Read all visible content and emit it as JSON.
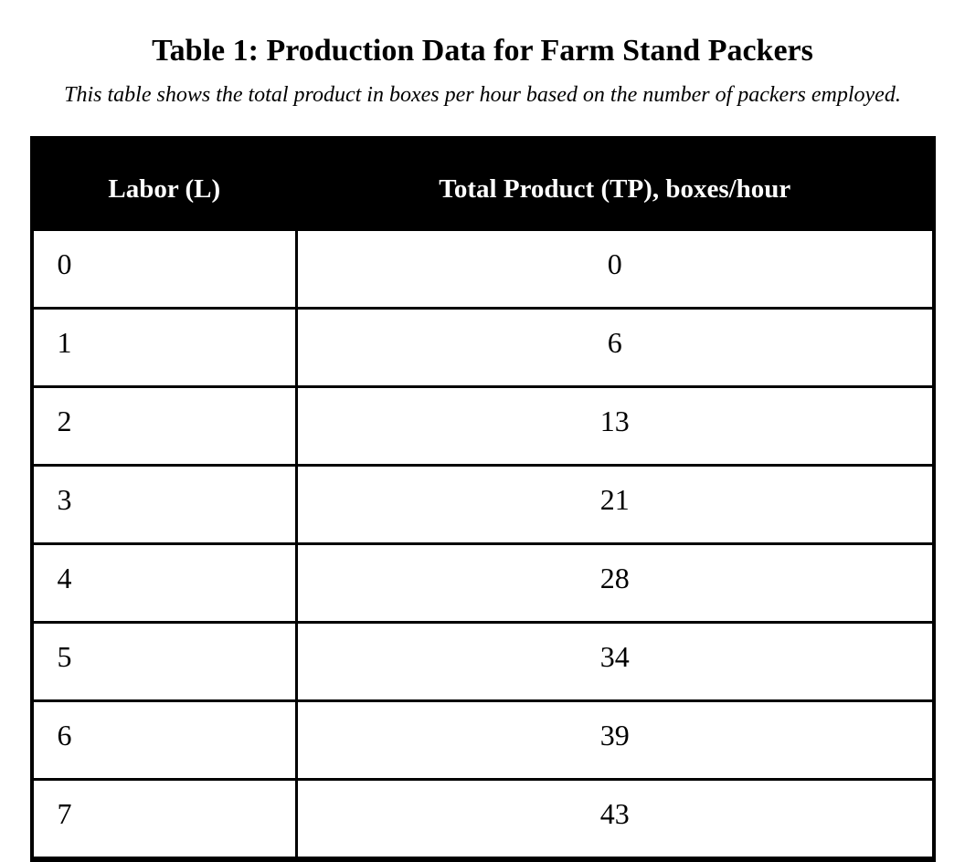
{
  "document": {
    "title": "Table 1: Production Data for Farm Stand Packers",
    "caption": "This table shows the total product in boxes per hour based on the number of packers employed."
  },
  "table": {
    "headers": [
      "Labor (L)",
      "Total Product (TP), boxes/hour"
    ],
    "rows": [
      {
        "labor": "0",
        "tp": "0"
      },
      {
        "labor": "1",
        "tp": "6"
      },
      {
        "labor": "2",
        "tp": "13"
      },
      {
        "labor": "3",
        "tp": "21"
      },
      {
        "labor": "4",
        "tp": "28"
      },
      {
        "labor": "5",
        "tp": "34"
      },
      {
        "labor": "6",
        "tp": "39"
      },
      {
        "labor": "7",
        "tp": "43"
      }
    ]
  },
  "colors": {
    "header_bg": "#000000",
    "header_text": "#ffffff",
    "body_bg": "#ffffff",
    "body_text": "#000000",
    "border": "#000000"
  },
  "chart_data": {
    "type": "table",
    "title": "Table 1: Production Data for Farm Stand Packers",
    "caption": "This table shows the total product in boxes per hour based on the number of packers employed.",
    "columns": [
      "Labor (L)",
      "Total Product (TP), boxes/hour"
    ],
    "x": [
      0,
      1,
      2,
      3,
      4,
      5,
      6,
      7
    ],
    "xlabel": "Labor (L)",
    "series": [
      {
        "name": "Total Product (TP), boxes/hour",
        "values": [
          0,
          6,
          13,
          21,
          28,
          34,
          39,
          43
        ]
      }
    ]
  }
}
